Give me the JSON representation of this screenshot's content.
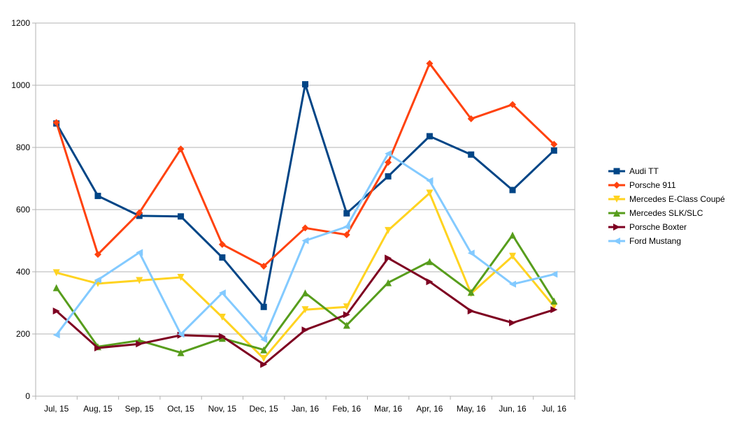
{
  "chart_data": {
    "type": "line",
    "categories": [
      "Jul, 15",
      "Aug, 15",
      "Sep, 15",
      "Oct, 15",
      "Nov, 15",
      "Dec, 15",
      "Jan, 16",
      "Feb, 16",
      "Mar, 16",
      "Apr, 16",
      "May, 16",
      "Jun, 16",
      "Jul, 16"
    ],
    "y_ticks": [
      "0",
      "200",
      "400",
      "600",
      "800",
      "1000",
      "1200"
    ],
    "ylim": [
      0,
      1200
    ],
    "grid": "horizontal",
    "legend_position": "right",
    "series": [
      {
        "name": "Audi TT",
        "color": "#004586",
        "marker": "square",
        "values": [
          877,
          644,
          580,
          578,
          446,
          287,
          1003,
          588,
          707,
          836,
          777,
          663,
          790
        ]
      },
      {
        "name": "Porsche 911",
        "color": "#ff420e",
        "marker": "diamond",
        "values": [
          880,
          456,
          590,
          795,
          488,
          418,
          541,
          519,
          752,
          1070,
          892,
          938,
          810
        ]
      },
      {
        "name": "Mercedes E-Class Coupé",
        "color": "#ffd320",
        "marker": "triangle-down",
        "values": [
          397,
          362,
          372,
          382,
          254,
          121,
          278,
          287,
          533,
          653,
          330,
          450,
          289
        ]
      },
      {
        "name": "Mercedes SLK/SLC",
        "color": "#579d1c",
        "marker": "triangle-up",
        "values": [
          349,
          159,
          179,
          140,
          186,
          149,
          332,
          228,
          365,
          433,
          334,
          518,
          306
        ]
      },
      {
        "name": "Porsche Boxter",
        "color": "#7e0021",
        "marker": "triangle-right",
        "values": [
          274,
          155,
          168,
          196,
          192,
          102,
          213,
          262,
          444,
          368,
          274,
          236,
          278
        ]
      },
      {
        "name": "Ford Mustang",
        "color": "#83caff",
        "marker": "triangle-left",
        "values": [
          197,
          374,
          462,
          199,
          332,
          182,
          500,
          545,
          780,
          693,
          460,
          360,
          392
        ]
      }
    ]
  }
}
